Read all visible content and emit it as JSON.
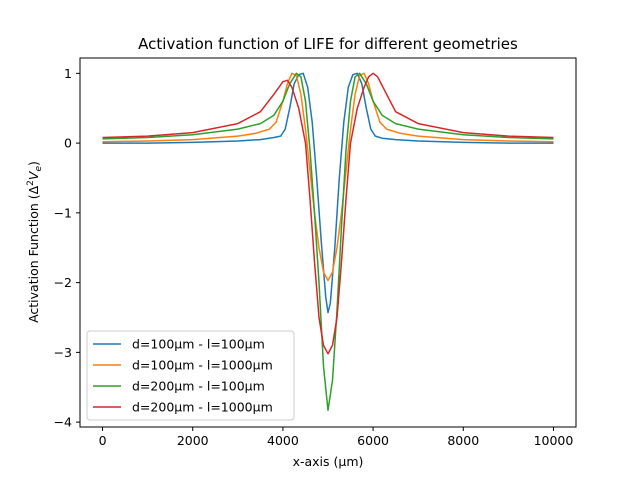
{
  "chart_data": {
    "type": "line",
    "title": "Activation function of LIFE for different geometries",
    "xlabel": "x-axis (µm)",
    "ylabel_main": "Activation Function (Δ",
    "ylabel_sup": "2",
    "ylabel_var": "V",
    "ylabel_sub": "e",
    "ylabel_close": ")",
    "xlim": [
      -500,
      10500
    ],
    "ylim": [
      -4.07,
      1.22
    ],
    "xticks": [
      0,
      2000,
      4000,
      6000,
      8000,
      10000
    ],
    "xtick_labels": [
      "0",
      "2000",
      "4000",
      "6000",
      "8000",
      "10000"
    ],
    "yticks": [
      1,
      0,
      -1,
      -2,
      -3,
      -4
    ],
    "ytick_labels": [
      "1",
      "0",
      "−1",
      "−2",
      "−3",
      "−4"
    ],
    "grid": false,
    "legend_position": "lower-left",
    "series": [
      {
        "name": "d=100µm - l=100µm",
        "color": "#1f77b4",
        "points": [
          [
            0,
            0.0
          ],
          [
            1000,
            0.0
          ],
          [
            2000,
            0.01
          ],
          [
            3000,
            0.03
          ],
          [
            3500,
            0.05
          ],
          [
            3800,
            0.08
          ],
          [
            3950,
            0.1
          ],
          [
            4050,
            0.2
          ],
          [
            4150,
            0.5
          ],
          [
            4250,
            0.85
          ],
          [
            4350,
            0.98
          ],
          [
            4450,
            1.0
          ],
          [
            4550,
            0.8
          ],
          [
            4650,
            0.3
          ],
          [
            4750,
            -0.5
          ],
          [
            4850,
            -1.4
          ],
          [
            4950,
            -2.2
          ],
          [
            5000,
            -2.43
          ],
          [
            5050,
            -2.3
          ],
          [
            5150,
            -1.5
          ],
          [
            5250,
            -0.5
          ],
          [
            5350,
            0.3
          ],
          [
            5450,
            0.8
          ],
          [
            5550,
            0.98
          ],
          [
            5650,
            1.0
          ],
          [
            5750,
            0.85
          ],
          [
            5850,
            0.5
          ],
          [
            5950,
            0.2
          ],
          [
            6050,
            0.1
          ],
          [
            6200,
            0.07
          ],
          [
            6500,
            0.05
          ],
          [
            7000,
            0.03
          ],
          [
            8000,
            0.01
          ],
          [
            9000,
            0.0
          ],
          [
            10000,
            0.0
          ]
        ]
      },
      {
        "name": "d=100µm - l=1000µm",
        "color": "#ff7f0e",
        "points": [
          [
            0,
            0.02
          ],
          [
            1000,
            0.03
          ],
          [
            2000,
            0.05
          ],
          [
            3000,
            0.1
          ],
          [
            3400,
            0.14
          ],
          [
            3700,
            0.2
          ],
          [
            3850,
            0.3
          ],
          [
            4000,
            0.6
          ],
          [
            4100,
            0.85
          ],
          [
            4200,
            1.0
          ],
          [
            4300,
            0.97
          ],
          [
            4400,
            0.7
          ],
          [
            4500,
            0.2
          ],
          [
            4600,
            -0.4
          ],
          [
            4700,
            -1.0
          ],
          [
            4800,
            -1.5
          ],
          [
            4900,
            -1.85
          ],
          [
            5000,
            -1.97
          ],
          [
            5100,
            -1.85
          ],
          [
            5200,
            -1.5
          ],
          [
            5300,
            -1.0
          ],
          [
            5400,
            -0.4
          ],
          [
            5500,
            0.2
          ],
          [
            5600,
            0.7
          ],
          [
            5700,
            0.97
          ],
          [
            5800,
            1.0
          ],
          [
            5900,
            0.85
          ],
          [
            6000,
            0.6
          ],
          [
            6150,
            0.3
          ],
          [
            6300,
            0.2
          ],
          [
            6600,
            0.14
          ],
          [
            7000,
            0.1
          ],
          [
            8000,
            0.05
          ],
          [
            9000,
            0.03
          ],
          [
            10000,
            0.02
          ]
        ]
      },
      {
        "name": "d=200µm - l=100µm",
        "color": "#2ca02c",
        "points": [
          [
            0,
            0.06
          ],
          [
            1000,
            0.08
          ],
          [
            2000,
            0.12
          ],
          [
            3000,
            0.2
          ],
          [
            3500,
            0.28
          ],
          [
            3800,
            0.4
          ],
          [
            4000,
            0.6
          ],
          [
            4150,
            0.85
          ],
          [
            4300,
            1.0
          ],
          [
            4400,
            0.95
          ],
          [
            4500,
            0.6
          ],
          [
            4600,
            -0.1
          ],
          [
            4700,
            -1.0
          ],
          [
            4800,
            -2.0
          ],
          [
            4900,
            -3.2
          ],
          [
            5000,
            -3.83
          ],
          [
            5100,
            -3.4
          ],
          [
            5200,
            -2.4
          ],
          [
            5300,
            -1.2
          ],
          [
            5400,
            -0.1
          ],
          [
            5500,
            0.6
          ],
          [
            5600,
            0.95
          ],
          [
            5700,
            1.0
          ],
          [
            5850,
            0.85
          ],
          [
            6000,
            0.6
          ],
          [
            6200,
            0.4
          ],
          [
            6500,
            0.28
          ],
          [
            7000,
            0.2
          ],
          [
            8000,
            0.12
          ],
          [
            9000,
            0.08
          ],
          [
            10000,
            0.06
          ]
        ]
      },
      {
        "name": "d=200µm - l=1000µm",
        "color": "#d62728",
        "points": [
          [
            0,
            0.08
          ],
          [
            1000,
            0.1
          ],
          [
            2000,
            0.15
          ],
          [
            3000,
            0.28
          ],
          [
            3500,
            0.45
          ],
          [
            3800,
            0.7
          ],
          [
            4000,
            0.88
          ],
          [
            4100,
            0.9
          ],
          [
            4200,
            0.8
          ],
          [
            4350,
            0.5
          ],
          [
            4500,
            0.0
          ],
          [
            4600,
            -0.8
          ],
          [
            4700,
            -1.7
          ],
          [
            4800,
            -2.5
          ],
          [
            4900,
            -2.9
          ],
          [
            5000,
            -3.02
          ],
          [
            5100,
            -2.9
          ],
          [
            5200,
            -2.5
          ],
          [
            5300,
            -1.7
          ],
          [
            5400,
            -0.8
          ],
          [
            5500,
            0.0
          ],
          [
            5650,
            0.5
          ],
          [
            5800,
            0.8
          ],
          [
            5900,
            0.95
          ],
          [
            6000,
            1.0
          ],
          [
            6100,
            0.95
          ],
          [
            6300,
            0.7
          ],
          [
            6500,
            0.45
          ],
          [
            7000,
            0.28
          ],
          [
            8000,
            0.15
          ],
          [
            9000,
            0.1
          ],
          [
            10000,
            0.08
          ]
        ]
      }
    ]
  }
}
